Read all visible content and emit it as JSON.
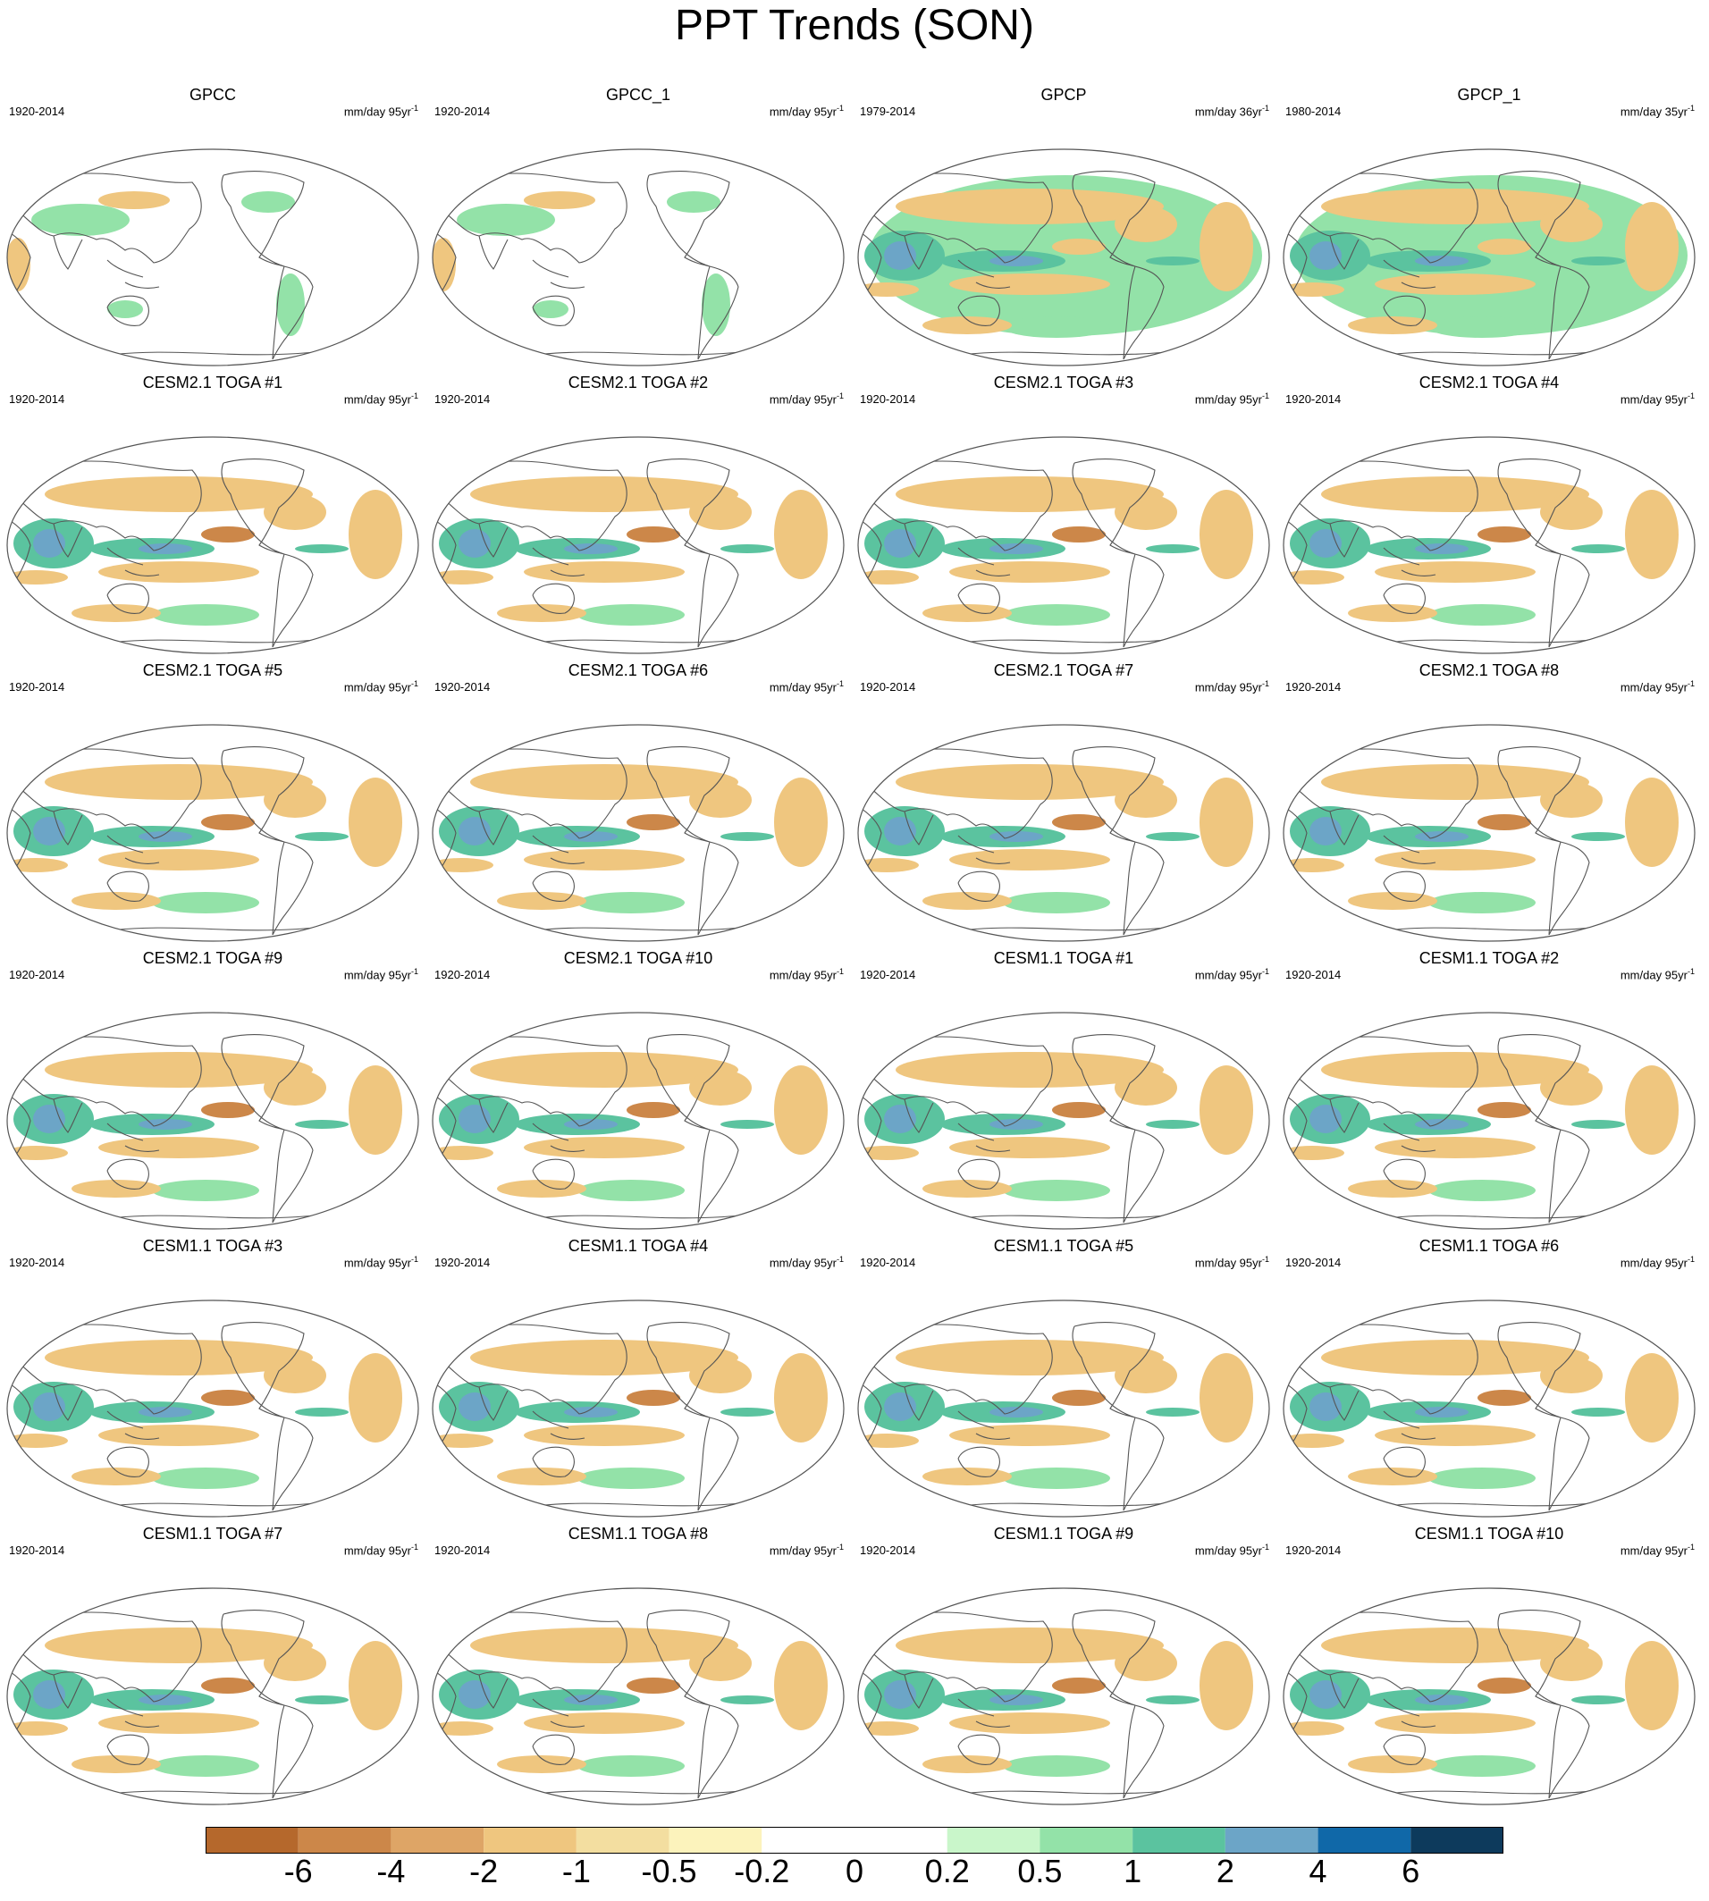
{
  "title": "PPT Trends (SON)",
  "panels": [
    {
      "title": "GPCC",
      "years": "1920-2014",
      "units": "mm/day 95yr",
      "sup": "-1",
      "kind": "land"
    },
    {
      "title": "GPCC_1",
      "years": "1920-2014",
      "units": "mm/day 95yr",
      "sup": "-1",
      "kind": "land"
    },
    {
      "title": "GPCP",
      "years": "1979-2014",
      "units": "mm/day 36yr",
      "sup": "-1",
      "kind": "obs"
    },
    {
      "title": "GPCP_1",
      "years": "1980-2014",
      "units": "mm/day 35yr",
      "sup": "-1",
      "kind": "obs"
    },
    {
      "title": "CESM2.1 TOGA #1",
      "years": "1920-2014",
      "units": "mm/day 95yr",
      "sup": "-1",
      "kind": "model"
    },
    {
      "title": "CESM2.1 TOGA #2",
      "years": "1920-2014",
      "units": "mm/day 95yr",
      "sup": "-1",
      "kind": "model"
    },
    {
      "title": "CESM2.1 TOGA #3",
      "years": "1920-2014",
      "units": "mm/day 95yr",
      "sup": "-1",
      "kind": "model"
    },
    {
      "title": "CESM2.1 TOGA #4",
      "years": "1920-2014",
      "units": "mm/day 95yr",
      "sup": "-1",
      "kind": "model"
    },
    {
      "title": "CESM2.1 TOGA #5",
      "years": "1920-2014",
      "units": "mm/day 95yr",
      "sup": "-1",
      "kind": "model"
    },
    {
      "title": "CESM2.1 TOGA #6",
      "years": "1920-2014",
      "units": "mm/day 95yr",
      "sup": "-1",
      "kind": "model"
    },
    {
      "title": "CESM2.1 TOGA #7",
      "years": "1920-2014",
      "units": "mm/day 95yr",
      "sup": "-1",
      "kind": "model"
    },
    {
      "title": "CESM2.1 TOGA #8",
      "years": "1920-2014",
      "units": "mm/day 95yr",
      "sup": "-1",
      "kind": "model"
    },
    {
      "title": "CESM2.1 TOGA #9",
      "years": "1920-2014",
      "units": "mm/day 95yr",
      "sup": "-1",
      "kind": "model"
    },
    {
      "title": "CESM2.1 TOGA #10",
      "years": "1920-2014",
      "units": "mm/day 95yr",
      "sup": "-1",
      "kind": "model"
    },
    {
      "title": "CESM1.1 TOGA #1",
      "years": "1920-2014",
      "units": "mm/day 95yr",
      "sup": "-1",
      "kind": "model"
    },
    {
      "title": "CESM1.1 TOGA #2",
      "years": "1920-2014",
      "units": "mm/day 95yr",
      "sup": "-1",
      "kind": "model"
    },
    {
      "title": "CESM1.1 TOGA #3",
      "years": "1920-2014",
      "units": "mm/day 95yr",
      "sup": "-1",
      "kind": "model"
    },
    {
      "title": "CESM1.1 TOGA #4",
      "years": "1920-2014",
      "units": "mm/day 95yr",
      "sup": "-1",
      "kind": "model"
    },
    {
      "title": "CESM1.1 TOGA #5",
      "years": "1920-2014",
      "units": "mm/day 95yr",
      "sup": "-1",
      "kind": "model"
    },
    {
      "title": "CESM1.1 TOGA #6",
      "years": "1920-2014",
      "units": "mm/day 95yr",
      "sup": "-1",
      "kind": "model"
    },
    {
      "title": "CESM1.1 TOGA #7",
      "years": "1920-2014",
      "units": "mm/day 95yr",
      "sup": "-1",
      "kind": "model"
    },
    {
      "title": "CESM1.1 TOGA #8",
      "years": "1920-2014",
      "units": "mm/day 95yr",
      "sup": "-1",
      "kind": "model"
    },
    {
      "title": "CESM1.1 TOGA #9",
      "years": "1920-2014",
      "units": "mm/day 95yr",
      "sup": "-1",
      "kind": "model"
    },
    {
      "title": "CESM1.1 TOGA #10",
      "years": "1920-2014",
      "units": "mm/day 95yr",
      "sup": "-1",
      "kind": "model"
    }
  ],
  "colorbar": {
    "colors": [
      "#b5682c",
      "#cc8749",
      "#dea566",
      "#efc67f",
      "#f3dea0",
      "#fcf3bc",
      "#ffffff",
      "#ffffff",
      "#c9f6ca",
      "#93e2a8",
      "#5bc39f",
      "#6ca5c7",
      "#1068a8",
      "#0d3a5c"
    ],
    "labels": [
      "-6",
      "-4",
      "-2",
      "-1",
      "-0.5",
      "-0.2",
      "0",
      "0.2",
      "0.5",
      "1",
      "2",
      "4",
      "6"
    ]
  },
  "colors": {
    "drying_strong": "#cc8749",
    "drying_weak": "#efc67f",
    "wet_weak": "#93e2a8",
    "wet_strong": "#5bc39f",
    "wet_max": "#6ca5c7",
    "coastline": "#555555"
  }
}
